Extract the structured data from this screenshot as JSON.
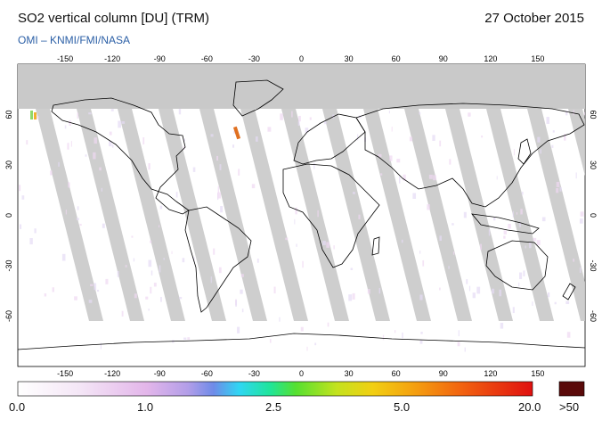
{
  "header": {
    "title": "SO2 vertical column [DU] (TRM)",
    "date": "27 October 2015",
    "credit": "OMI  –  KNMI/FMI/NASA"
  },
  "map": {
    "lon_ticks": [
      "-150",
      "-120",
      "-90",
      "-60",
      "-30",
      "0",
      "30",
      "60",
      "90",
      "120",
      "150"
    ],
    "lat_ticks": [
      "60",
      "30",
      "0",
      "-30",
      "-60"
    ],
    "colors": {
      "no_data": "#c9c9c9",
      "background": "#ffffff",
      "coastline": "#000000"
    }
  },
  "colorbar": {
    "labels": [
      "0.0",
      "1.0",
      "2.5",
      "5.0",
      "20.0"
    ],
    "overflow_label": ">50",
    "overflow_color": "#5a0a0a"
  }
}
